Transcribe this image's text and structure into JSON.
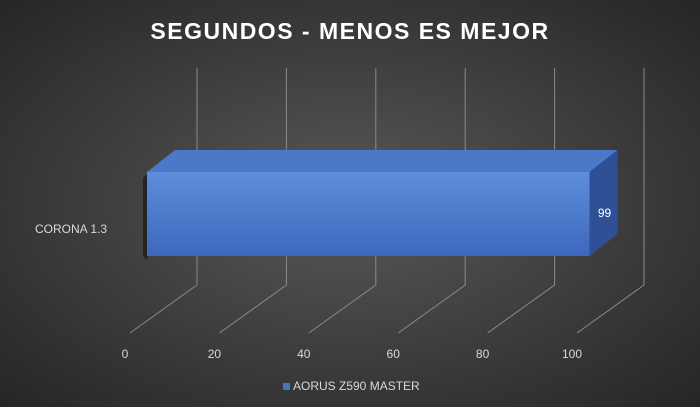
{
  "chart_data": {
    "type": "bar",
    "orientation": "horizontal",
    "three_d": true,
    "title": "SEGUNDOS - MENOS ES MEJOR",
    "categories": [
      "CORONA 1.3"
    ],
    "series": [
      {
        "name": "AORUS Z590 MASTER",
        "color": "#4472c4",
        "values": [
          99
        ]
      }
    ],
    "xlim": [
      0,
      100
    ],
    "xticks": [
      0,
      20,
      40,
      60,
      80,
      100
    ],
    "grid": true,
    "legend": "bottom"
  }
}
